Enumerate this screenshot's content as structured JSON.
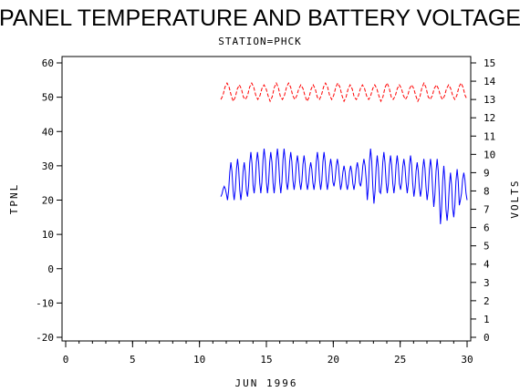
{
  "chart_data": {
    "type": "line",
    "title": "PANEL TEMPERATURE AND BATTERY VOLTAGE",
    "subtitle": "STATION=PHCK",
    "xlabel": "JUN 1996",
    "ylabel_left": "TPNL",
    "ylabel_right": "VOLTS",
    "xlim": [
      0,
      30
    ],
    "ylim_left": [
      -20,
      60
    ],
    "ylim_right": [
      0,
      15
    ],
    "x_ticks": [
      0,
      5,
      10,
      15,
      20,
      25,
      30
    ],
    "y_left_ticks": [
      -20,
      -10,
      0,
      10,
      20,
      30,
      40,
      50,
      60
    ],
    "y_right_ticks": [
      0,
      1,
      2,
      3,
      4,
      5,
      6,
      7,
      8,
      9,
      10,
      11,
      12,
      13,
      14,
      15
    ],
    "grid": false,
    "series": [
      {
        "axis": "left",
        "color": "#0000ff",
        "style": "solid",
        "start_day": 11.6,
        "end_day": 30,
        "daily_max": [
          24,
          31,
          32,
          31,
          34,
          34,
          35,
          34,
          35,
          35,
          34,
          33,
          33,
          31,
          34,
          34,
          32,
          32,
          30,
          30,
          31,
          32,
          35,
          33,
          34,
          33,
          33,
          32,
          33,
          31,
          32,
          32,
          32,
          30,
          28,
          29,
          28
        ],
        "daily_min": [
          21,
          20,
          20,
          20,
          21,
          22,
          22,
          22,
          22,
          22,
          23,
          23,
          23,
          23,
          23,
          23,
          23,
          24,
          23,
          23,
          23,
          24,
          20,
          19,
          22,
          22,
          22,
          23,
          22,
          21,
          21,
          20,
          18,
          13,
          14,
          15,
          20
        ]
      },
      {
        "axis": "right",
        "color": "#ff0000",
        "style": "dashed",
        "start_day": 11.6,
        "end_day": 30,
        "daily_max": [
          13.9,
          13.8,
          13.9,
          13.8,
          13.9,
          13.9,
          13.8,
          13.8,
          13.9,
          13.9,
          13.8,
          13.8,
          13.8,
          13.9,
          13.8,
          13.8,
          13.9,
          13.8,
          13.8,
          13.9
        ],
        "daily_min": [
          13.0,
          12.9,
          13.0,
          13.0,
          12.9,
          13.0,
          13.0,
          12.9,
          13.0,
          13.0,
          12.9,
          13.0,
          13.0,
          12.9,
          13.0,
          13.0,
          12.9,
          13.0,
          13.0,
          13.0
        ]
      }
    ]
  }
}
